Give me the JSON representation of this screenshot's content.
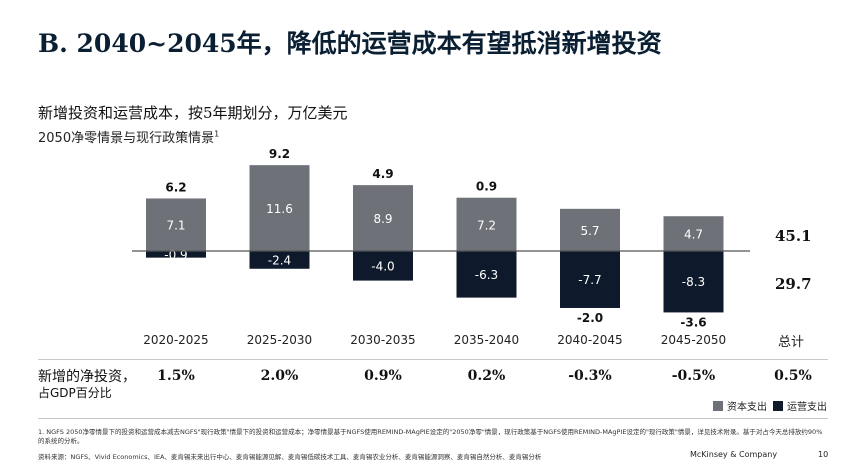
{
  "header": {
    "title": "B. 2040~2045年，降低的运营成本有望抵消新增投资",
    "subtitle": "新增投资和运营成本，按5年期划分，万亿美元",
    "subtitle2": "2050净零情景与现行政策情景"
  },
  "chart_data": {
    "type": "bar",
    "stacked": true,
    "categories": [
      "2020-2025",
      "2025-2030",
      "2030-2035",
      "2035-2040",
      "2040-2045",
      "2045-2050"
    ],
    "series": [
      {
        "name": "资本支出",
        "values": [
          7.1,
          11.6,
          8.9,
          7.2,
          5.7,
          4.7
        ],
        "color": "#6e7178"
      },
      {
        "name": "运营支出",
        "values": [
          -0.9,
          -2.4,
          -4.0,
          -6.3,
          -7.7,
          -8.3
        ],
        "color": "#0e1a2b"
      }
    ],
    "net_labels": [
      "6.2",
      "9.2",
      "4.9",
      "0.9",
      "-2.0",
      "-3.6"
    ],
    "totals": {
      "label": "总计",
      "capex": "45.1",
      "opex": "29.7"
    },
    "ylim": [
      -8.6,
      11.8
    ],
    "legend_position": "bottom-right"
  },
  "net_investment": {
    "label": "新增的净投资，",
    "sublabel": "占GDP百分比",
    "values": [
      "1.5%",
      "2.0%",
      "0.9%",
      "0.2%",
      "-0.3%",
      "-0.5%"
    ],
    "total": "0.5%"
  },
  "legend": {
    "capex": "资本支出",
    "opex": "运营支出"
  },
  "footnote": "1. NGFS 2050净零情景下的投资和运营成本减去NGFS\"现行政策\"情景下的投资和运营成本；净零情景基于NGFS使用REMIND-MAgPIE设定的\"2050净零\"情景，现行政策基于NGFS使用REMIND-MAgPIE设定的\"现行政策\"情景，详见技术附录。基于对占今天总排放约90%的系统的分析。",
  "source": "资料来源：NGFS、Vivid Economics、IEA、麦肯锡未来出行中心、麦肯锡能源见解、麦肯锡低碳技术工具、麦肯锡农业分析、麦肯锡能源洞察、麦肯锡自然分析、麦肯锡分析",
  "footer": {
    "brand": "McKinsey & Company",
    "page": "10"
  }
}
